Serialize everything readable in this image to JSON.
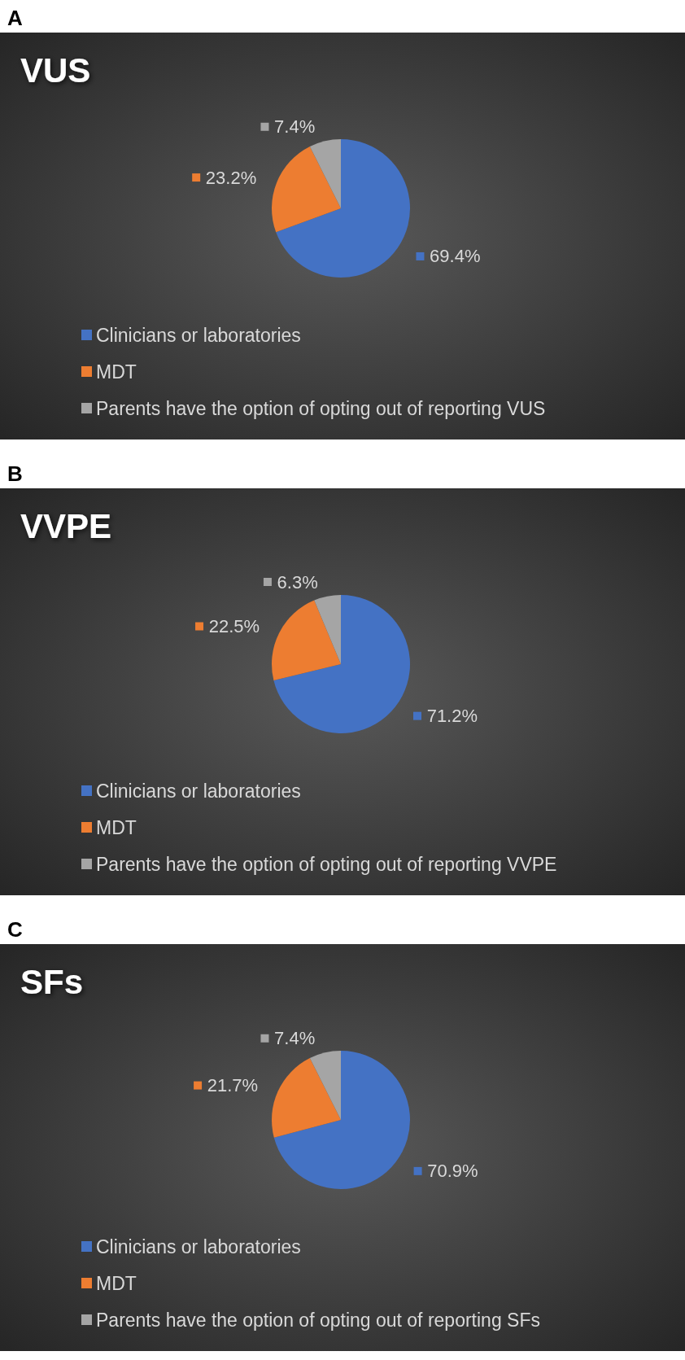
{
  "chart_data": [
    {
      "type": "pie",
      "title": "VUS",
      "annotations": [
        "A"
      ],
      "categories": [
        "Clinicians or laboratories",
        "MDT",
        "Parents have the option of opting out of reporting VUS"
      ],
      "values": [
        69.4,
        23.2,
        7.4
      ],
      "colors": [
        "#4472c4",
        "#ed7d31",
        "#a5a5a5"
      ],
      "value_labels": [
        "69.4%",
        "23.2%",
        "7.4%"
      ],
      "legend": "bottom left"
    },
    {
      "type": "pie",
      "title": "VVPE",
      "annotations": [
        "B"
      ],
      "categories": [
        "Clinicians or laboratories",
        "MDT",
        "Parents have the option of opting out of reporting VVPE"
      ],
      "values": [
        71.2,
        22.5,
        6.3
      ],
      "colors": [
        "#4472c4",
        "#ed7d31",
        "#a5a5a5"
      ],
      "value_labels": [
        "71.2%",
        "22.5%",
        "6.3%"
      ],
      "legend": "bottom left"
    },
    {
      "type": "pie",
      "title": "SFs",
      "annotations": [
        "C"
      ],
      "categories": [
        "Clinicians or laboratories",
        "MDT",
        "Parents have the option of opting out of reporting SFs"
      ],
      "values": [
        70.9,
        21.7,
        7.4
      ],
      "colors": [
        "#4472c4",
        "#ed7d31",
        "#a5a5a5"
      ],
      "value_labels": [
        "70.9%",
        "21.7%",
        "7.4%"
      ],
      "legend": "bottom left"
    }
  ]
}
